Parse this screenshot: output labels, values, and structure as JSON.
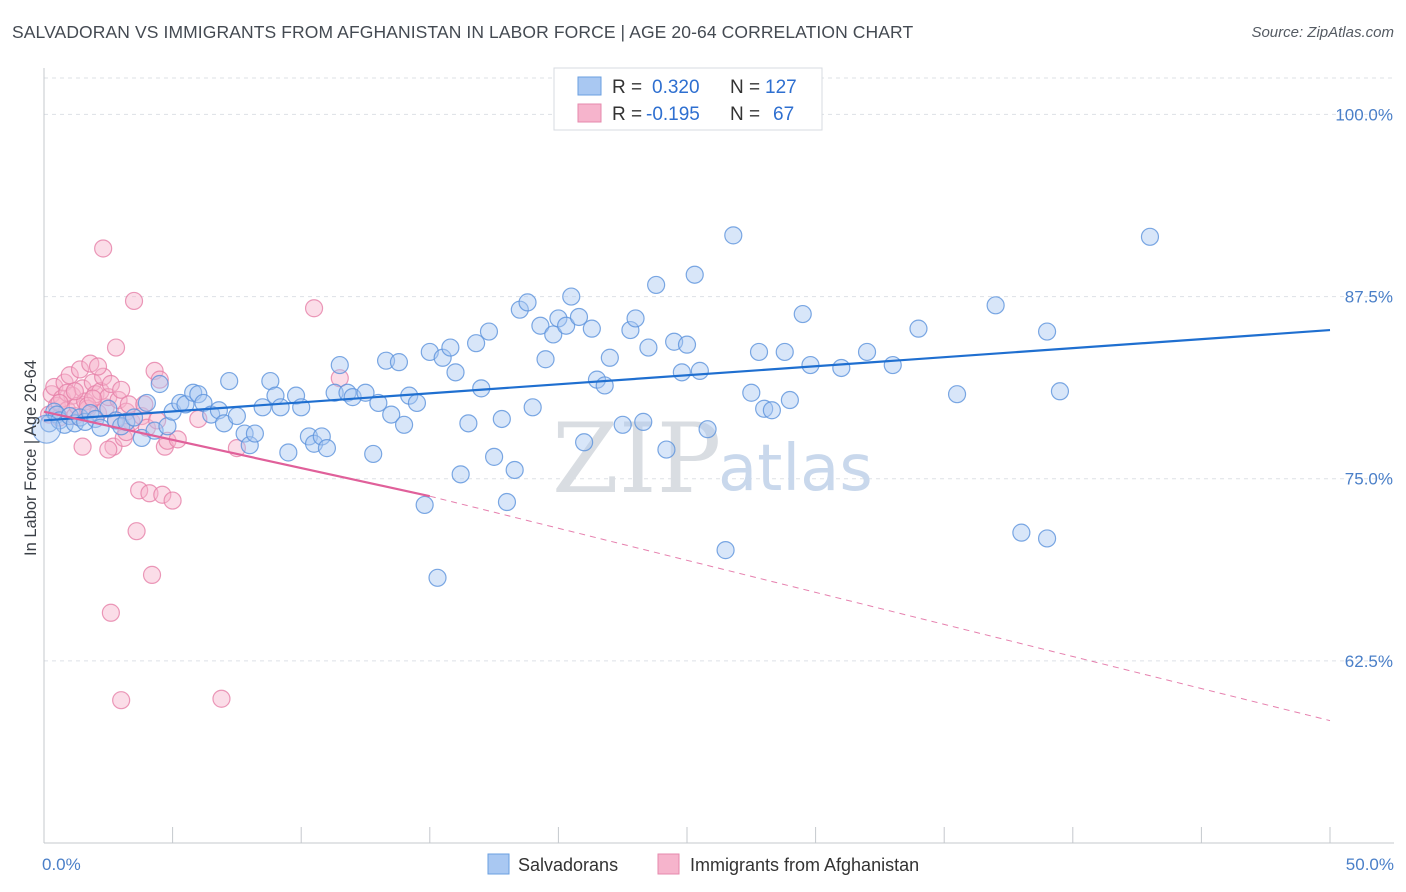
{
  "title": "SALVADORAN VS IMMIGRANTS FROM AFGHANISTAN IN LABOR FORCE | AGE 20-64 CORRELATION CHART",
  "source": "Source: ZipAtlas.com",
  "watermark": {
    "zip": "ZIP",
    "atlas": "atlas"
  },
  "colors": {
    "blue": "#1f6fd0",
    "blue_fill": "#a9c8f2",
    "pink": "#e0609a",
    "pink_fill": "#f6b4cc",
    "axis_text": "#4a7fc8",
    "grid": "#dde1e6"
  },
  "legend": {
    "rows": [
      {
        "r_label": "R =",
        "r_value": "0.320",
        "n_label": "N =",
        "n_value": "127"
      },
      {
        "r_label": "R =",
        "r_value": "-0.195",
        "n_label": "N =",
        "n_value": "67"
      }
    ]
  },
  "bottom_legend": [
    "Salvadorans",
    "Immigrants from Afghanistan"
  ],
  "chart_data": {
    "type": "scatter",
    "ylabel": "In Labor Force | Age 20-64",
    "xlabel": "",
    "xlim": [
      0,
      50
    ],
    "ylim": [
      50,
      102.5
    ],
    "x_tick_labels": [
      "0.0%",
      "50.0%"
    ],
    "y_ticks": [
      62.5,
      75.0,
      87.5,
      100.0
    ],
    "y_tick_labels": [
      "62.5%",
      "75.0%",
      "87.5%",
      "100.0%"
    ],
    "grid": true,
    "legend_position": "top-center",
    "series": [
      {
        "name": "Salvadorans",
        "trend": {
          "x": [
            0,
            50
          ],
          "y": [
            79.0,
            85.2
          ],
          "style": "solid"
        },
        "points": [
          [
            0.2,
            78.8
          ],
          [
            0.4,
            79.6
          ],
          [
            0.5,
            79.4
          ],
          [
            0.6,
            79.0
          ],
          [
            0.8,
            78.7
          ],
          [
            1.0,
            79.3
          ],
          [
            1.2,
            78.8
          ],
          [
            1.4,
            79.2
          ],
          [
            1.6,
            78.9
          ],
          [
            1.8,
            79.5
          ],
          [
            2.0,
            79.1
          ],
          [
            2.2,
            78.5
          ],
          [
            2.5,
            79.8
          ],
          [
            2.8,
            79.0
          ],
          [
            3.0,
            78.6
          ],
          [
            3.2,
            78.9
          ],
          [
            3.5,
            79.2
          ],
          [
            3.8,
            77.8
          ],
          [
            4.0,
            80.2
          ],
          [
            4.3,
            78.3
          ],
          [
            4.5,
            81.5
          ],
          [
            4.8,
            78.6
          ],
          [
            5.0,
            79.6
          ],
          [
            5.3,
            80.2
          ],
          [
            5.5,
            80.1
          ],
          [
            5.8,
            80.9
          ],
          [
            6.0,
            80.8
          ],
          [
            6.2,
            80.2
          ],
          [
            6.5,
            79.4
          ],
          [
            6.8,
            79.7
          ],
          [
            7.0,
            78.8
          ],
          [
            7.2,
            81.7
          ],
          [
            7.5,
            79.3
          ],
          [
            7.8,
            78.1
          ],
          [
            8.0,
            77.3
          ],
          [
            8.2,
            78.1
          ],
          [
            8.5,
            79.9
          ],
          [
            8.8,
            81.7
          ],
          [
            9.0,
            80.7
          ],
          [
            9.2,
            79.9
          ],
          [
            9.5,
            76.8
          ],
          [
            9.8,
            80.7
          ],
          [
            10.0,
            79.9
          ],
          [
            10.3,
            77.9
          ],
          [
            10.5,
            77.4
          ],
          [
            10.8,
            77.9
          ],
          [
            11.0,
            77.1
          ],
          [
            11.3,
            80.9
          ],
          [
            11.5,
            82.8
          ],
          [
            11.8,
            80.9
          ],
          [
            12.0,
            80.6
          ],
          [
            12.5,
            80.9
          ],
          [
            12.8,
            76.7
          ],
          [
            13.0,
            80.2
          ],
          [
            13.3,
            83.1
          ],
          [
            13.5,
            79.4
          ],
          [
            13.8,
            83.0
          ],
          [
            14.0,
            78.7
          ],
          [
            14.2,
            80.7
          ],
          [
            14.5,
            80.2
          ],
          [
            14.8,
            73.2
          ],
          [
            15.0,
            83.7
          ],
          [
            15.3,
            68.2
          ],
          [
            15.5,
            83.3
          ],
          [
            15.8,
            84.0
          ],
          [
            16.0,
            82.3
          ],
          [
            16.2,
            75.3
          ],
          [
            16.5,
            78.8
          ],
          [
            16.8,
            84.3
          ],
          [
            17.0,
            81.2
          ],
          [
            17.3,
            85.1
          ],
          [
            17.5,
            76.5
          ],
          [
            17.8,
            79.1
          ],
          [
            18.0,
            73.4
          ],
          [
            18.3,
            75.6
          ],
          [
            18.5,
            86.6
          ],
          [
            18.8,
            87.1
          ],
          [
            19.0,
            79.9
          ],
          [
            19.3,
            85.5
          ],
          [
            19.5,
            83.2
          ],
          [
            19.8,
            84.9
          ],
          [
            20.0,
            86.0
          ],
          [
            20.3,
            85.5
          ],
          [
            20.5,
            87.5
          ],
          [
            20.8,
            86.1
          ],
          [
            21.0,
            77.5
          ],
          [
            21.3,
            85.3
          ],
          [
            21.5,
            81.8
          ],
          [
            21.8,
            81.4
          ],
          [
            22.0,
            83.3
          ],
          [
            22.5,
            78.7
          ],
          [
            22.8,
            85.2
          ],
          [
            23.0,
            86.0
          ],
          [
            23.3,
            78.9
          ],
          [
            23.5,
            84.0
          ],
          [
            23.8,
            88.3
          ],
          [
            24.2,
            77.0
          ],
          [
            24.5,
            84.4
          ],
          [
            24.8,
            82.3
          ],
          [
            25.0,
            84.2
          ],
          [
            25.3,
            89.0
          ],
          [
            25.5,
            82.4
          ],
          [
            25.8,
            78.4
          ],
          [
            26.5,
            70.1
          ],
          [
            26.8,
            91.7
          ],
          [
            27.5,
            80.9
          ],
          [
            27.8,
            83.7
          ],
          [
            28.0,
            79.8
          ],
          [
            28.3,
            79.7
          ],
          [
            28.8,
            83.7
          ],
          [
            29.0,
            80.4
          ],
          [
            29.5,
            86.3
          ],
          [
            29.8,
            82.8
          ],
          [
            31.0,
            82.6
          ],
          [
            32.0,
            83.7
          ],
          [
            33.0,
            82.8
          ],
          [
            34.0,
            85.3
          ],
          [
            35.5,
            80.8
          ],
          [
            37.0,
            86.9
          ],
          [
            38.0,
            71.3
          ],
          [
            39.0,
            85.1
          ],
          [
            39.0,
            70.9
          ],
          [
            39.5,
            81.0
          ],
          [
            43.0,
            91.6
          ]
        ]
      },
      {
        "name": "Immigrants from Afghanistan",
        "trend": {
          "x": [
            0,
            15
          ],
          "y": [
            79.6,
            73.8
          ],
          "style": "solid",
          "dashed_to": {
            "x": 50,
            "y": 58.4
          }
        },
        "points": [
          [
            0.2,
            79.4
          ],
          [
            0.3,
            80.8
          ],
          [
            0.4,
            81.3
          ],
          [
            0.5,
            80.0
          ],
          [
            0.6,
            79.2
          ],
          [
            0.7,
            80.5
          ],
          [
            0.8,
            81.6
          ],
          [
            0.9,
            79.7
          ],
          [
            1.0,
            82.1
          ],
          [
            1.1,
            80.7
          ],
          [
            1.2,
            79.3
          ],
          [
            1.3,
            80.0
          ],
          [
            1.4,
            82.5
          ],
          [
            1.5,
            81.2
          ],
          [
            1.6,
            80.3
          ],
          [
            1.7,
            79.8
          ],
          [
            1.8,
            82.9
          ],
          [
            1.9,
            81.6
          ],
          [
            2.0,
            80.8
          ],
          [
            2.1,
            79.5
          ],
          [
            2.2,
            81.0
          ],
          [
            2.3,
            82.0
          ],
          [
            2.4,
            79.9
          ],
          [
            2.5,
            80.6
          ],
          [
            2.6,
            81.5
          ],
          [
            2.7,
            77.2
          ],
          [
            2.8,
            79.0
          ],
          [
            2.9,
            80.4
          ],
          [
            3.0,
            81.1
          ],
          [
            3.1,
            77.8
          ],
          [
            3.2,
            79.6
          ],
          [
            3.3,
            80.1
          ],
          [
            3.4,
            78.9
          ],
          [
            3.5,
            87.2
          ],
          [
            3.6,
            71.4
          ],
          [
            3.7,
            74.2
          ],
          [
            3.8,
            79.3
          ],
          [
            3.9,
            80.1
          ],
          [
            4.0,
            78.5
          ],
          [
            4.1,
            74.0
          ],
          [
            4.2,
            68.4
          ],
          [
            4.3,
            82.4
          ],
          [
            4.4,
            79.0
          ],
          [
            4.5,
            81.8
          ],
          [
            4.6,
            73.9
          ],
          [
            4.7,
            77.2
          ],
          [
            4.8,
            77.6
          ],
          [
            5.0,
            73.5
          ],
          [
            5.2,
            77.7
          ],
          [
            2.3,
            90.8
          ],
          [
            2.8,
            84.0
          ],
          [
            2.6,
            65.8
          ],
          [
            3.0,
            59.8
          ],
          [
            6.9,
            59.9
          ],
          [
            10.5,
            86.7
          ],
          [
            11.5,
            81.9
          ],
          [
            1.5,
            77.2
          ],
          [
            2.5,
            77.0
          ],
          [
            3.2,
            78.2
          ],
          [
            6.0,
            79.1
          ],
          [
            7.5,
            77.1
          ],
          [
            1.7,
            80.0
          ],
          [
            0.9,
            80.9
          ],
          [
            1.2,
            81.0
          ],
          [
            1.9,
            80.5
          ],
          [
            2.1,
            82.7
          ],
          [
            0.6,
            80.2
          ]
        ]
      }
    ]
  }
}
